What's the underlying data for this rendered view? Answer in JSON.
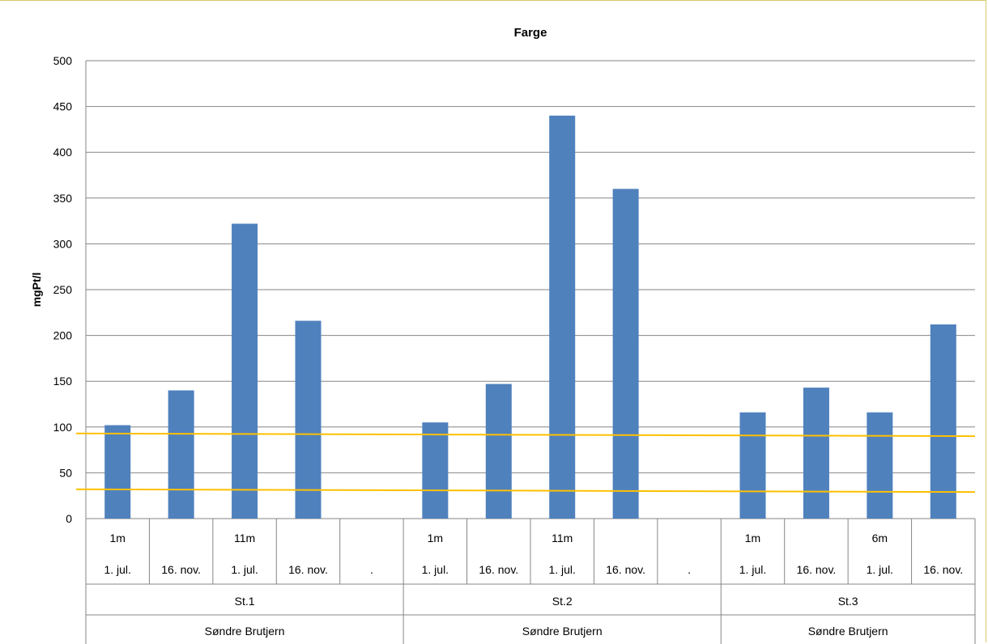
{
  "chart_data": {
    "type": "bar",
    "title": "Farge",
    "ylabel": "mgPt/l",
    "xlabel": "",
    "ylim": [
      0,
      500
    ],
    "yticks": [
      0,
      50,
      100,
      150,
      200,
      250,
      300,
      350,
      400,
      450,
      500
    ],
    "grid": true,
    "bar_color": "#4f81bd",
    "reference_line_color": "#ffc000",
    "reference_lines": [
      {
        "y_start": 93,
        "y_end": 90
      },
      {
        "y_start": 32,
        "y_end": 29
      }
    ],
    "categories": [
      {
        "depth": "1m",
        "date": "1. jul.",
        "station": "St.1",
        "lake": "Søndre Brutjern"
      },
      {
        "depth": "",
        "date": "16. nov.",
        "station": "St.1",
        "lake": "Søndre Brutjern"
      },
      {
        "depth": "11m",
        "date": "1. jul.",
        "station": "St.1",
        "lake": "Søndre Brutjern"
      },
      {
        "depth": "",
        "date": "16. nov.",
        "station": "St.1",
        "lake": "Søndre Brutjern"
      },
      {
        "depth": "",
        "date": ".",
        "station": "St.1",
        "lake": "Søndre Brutjern"
      },
      {
        "depth": "1m",
        "date": "1. jul.",
        "station": "St.2",
        "lake": "Søndre Brutjern"
      },
      {
        "depth": "",
        "date": "16. nov.",
        "station": "St.2",
        "lake": "Søndre Brutjern"
      },
      {
        "depth": "11m",
        "date": "1. jul.",
        "station": "St.2",
        "lake": "Søndre Brutjern"
      },
      {
        "depth": "",
        "date": "16. nov.",
        "station": "St.2",
        "lake": "Søndre Brutjern"
      },
      {
        "depth": "",
        "date": ".",
        "station": "St.2",
        "lake": "Søndre Brutjern"
      },
      {
        "depth": "1m",
        "date": "1. jul.",
        "station": "St.3",
        "lake": "Søndre Brutjern"
      },
      {
        "depth": "",
        "date": "16. nov.",
        "station": "St.3",
        "lake": "Søndre Brutjern"
      },
      {
        "depth": "6m",
        "date": "1. jul.",
        "station": "St.3",
        "lake": "Søndre Brutjern"
      },
      {
        "depth": "",
        "date": "16. nov.",
        "station": "St.3",
        "lake": "Søndre Brutjern"
      }
    ],
    "values": [
      102,
      140,
      322,
      216,
      null,
      105,
      147,
      440,
      360,
      null,
      116,
      143,
      116,
      212
    ]
  }
}
